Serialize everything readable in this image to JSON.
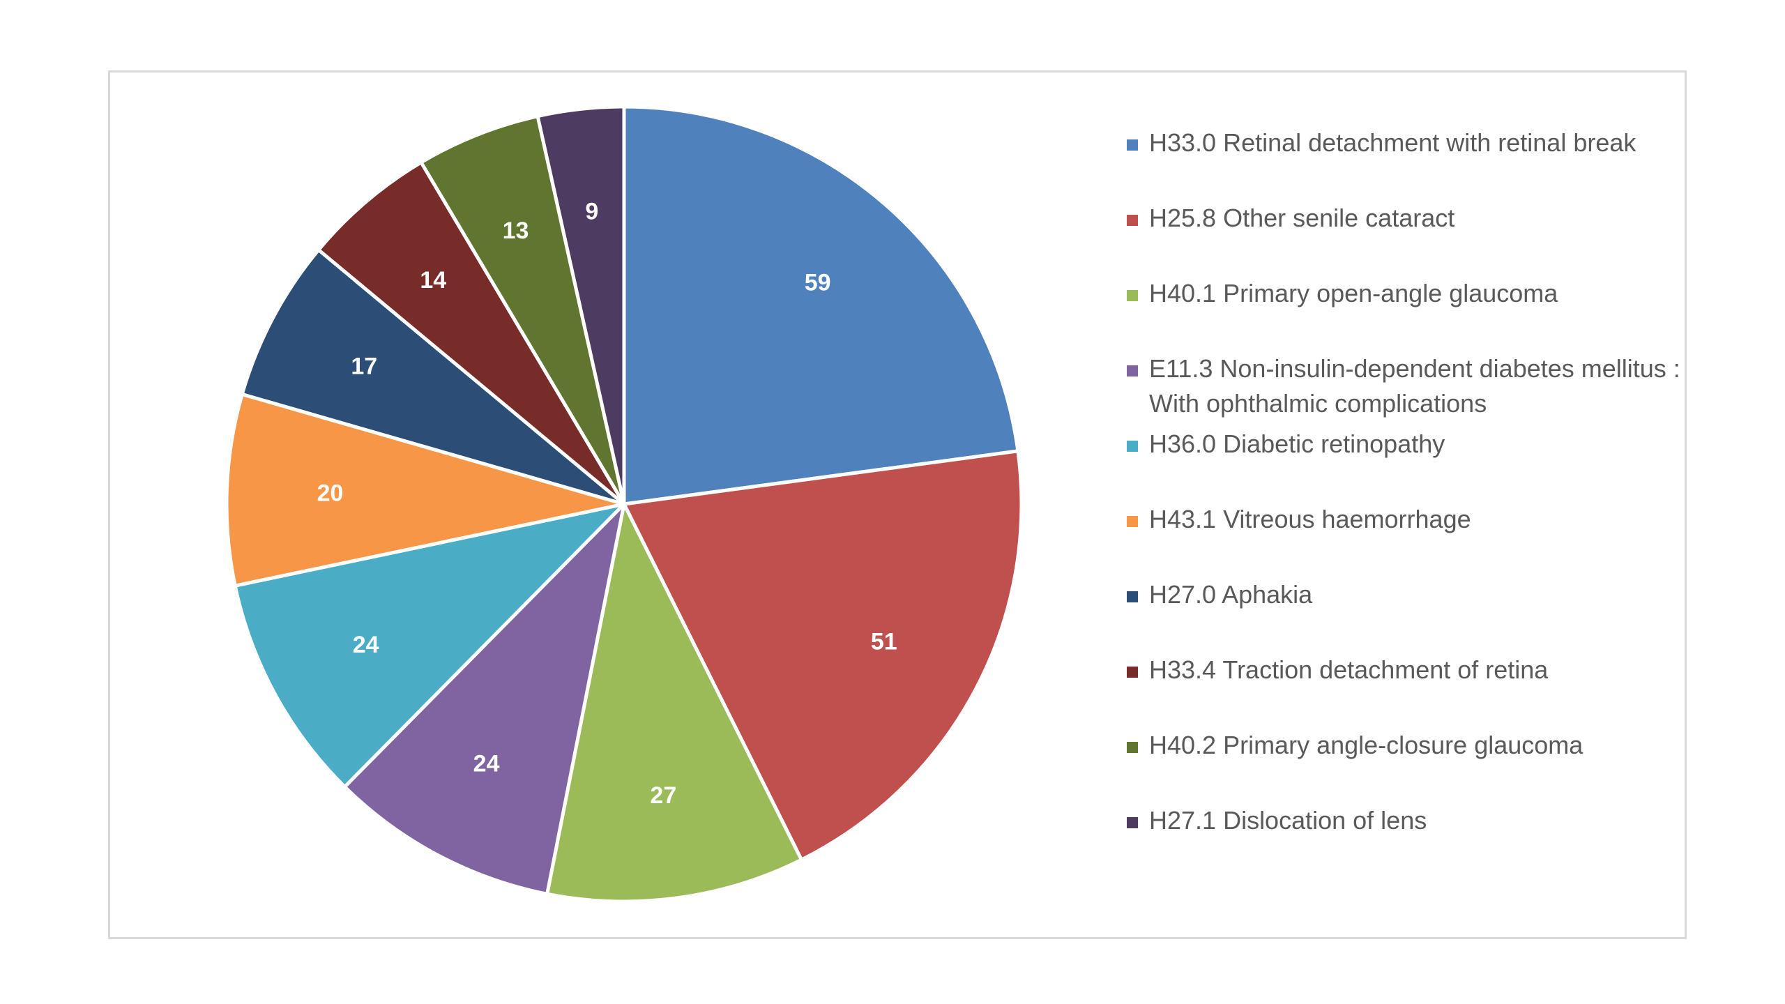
{
  "chart_data": {
    "type": "pie",
    "title": "",
    "legend_position": "right",
    "slices": [
      {
        "label": "H33.0 Retinal detachment with retinal break",
        "value": 59,
        "value_label": "59",
        "color": "#4F81BD"
      },
      {
        "label": "H25.8 Other senile cataract",
        "value": 51,
        "value_label": "51",
        "color": "#C0504D"
      },
      {
        "label": "H40.1 Primary open-angle glaucoma",
        "value": 27,
        "value_label": "27",
        "color": "#9BBB59"
      },
      {
        "label": "E11.3 Non-insulin-dependent diabetes mellitus : With ophthalmic complications",
        "value": 24,
        "value_label": "24",
        "color": "#8064A2"
      },
      {
        "label": "H36.0 Diabetic retinopathy",
        "value": 24,
        "value_label": "24",
        "color": "#4BACC6"
      },
      {
        "label": "H43.1 Vitreous haemorrhage",
        "value": 20,
        "value_label": "20",
        "color": "#F79646"
      },
      {
        "label": "H27.0 Aphakia",
        "value": 17,
        "value_label": "17",
        "color": "#2C4D75"
      },
      {
        "label": "H33.4 Traction detachment of retina",
        "value": 14,
        "value_label": "14",
        "color": "#772C2A"
      },
      {
        "label": "H40.2 Primary angle-closure glaucoma",
        "value": 13,
        "value_label": "13",
        "color": "#5F7530"
      },
      {
        "label": "H27.1 Dislocation of lens",
        "value": 9,
        "value_label": "9",
        "color": "#4D3B62"
      }
    ]
  }
}
